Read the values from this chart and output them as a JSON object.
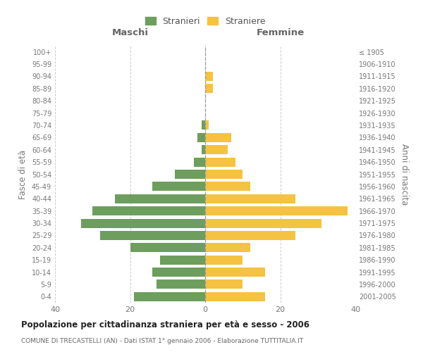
{
  "age_groups": [
    "100+",
    "95-99",
    "90-94",
    "85-89",
    "80-84",
    "75-79",
    "70-74",
    "65-69",
    "60-64",
    "55-59",
    "50-54",
    "45-49",
    "40-44",
    "35-39",
    "30-34",
    "25-29",
    "20-24",
    "15-19",
    "10-14",
    "5-9",
    "0-4"
  ],
  "birth_years": [
    "≤ 1905",
    "1906-1910",
    "1911-1915",
    "1916-1920",
    "1921-1925",
    "1926-1930",
    "1931-1935",
    "1936-1940",
    "1941-1945",
    "1946-1950",
    "1951-1955",
    "1956-1960",
    "1961-1965",
    "1966-1970",
    "1971-1975",
    "1976-1980",
    "1981-1985",
    "1986-1990",
    "1991-1995",
    "1996-2000",
    "2001-2005"
  ],
  "maschi": [
    0,
    0,
    0,
    0,
    0,
    0,
    1,
    2,
    1,
    3,
    8,
    14,
    24,
    30,
    33,
    28,
    20,
    12,
    14,
    13,
    19
  ],
  "femmine": [
    0,
    0,
    2,
    2,
    0,
    0,
    1,
    7,
    6,
    8,
    10,
    12,
    24,
    38,
    31,
    24,
    12,
    10,
    16,
    10,
    16
  ],
  "maschi_color": "#6d9e5e",
  "femmine_color": "#f5c242",
  "background_color": "#ffffff",
  "grid_color": "#cccccc",
  "title1": "Popolazione per cittadinanza straniera per età e sesso - 2006",
  "title2": "COMUNE DI TRECASTELLI (AN) - Dati ISTAT 1° gennaio 2006 - Elaborazione TUTTITALIA.IT",
  "xlabel_maschi": "Maschi",
  "xlabel_femmine": "Femmine",
  "ylabel_left": "Fasce di età",
  "ylabel_right": "Anni di nascita",
  "legend_maschi": "Stranieri",
  "legend_femmine": "Straniere",
  "xlim": 40
}
